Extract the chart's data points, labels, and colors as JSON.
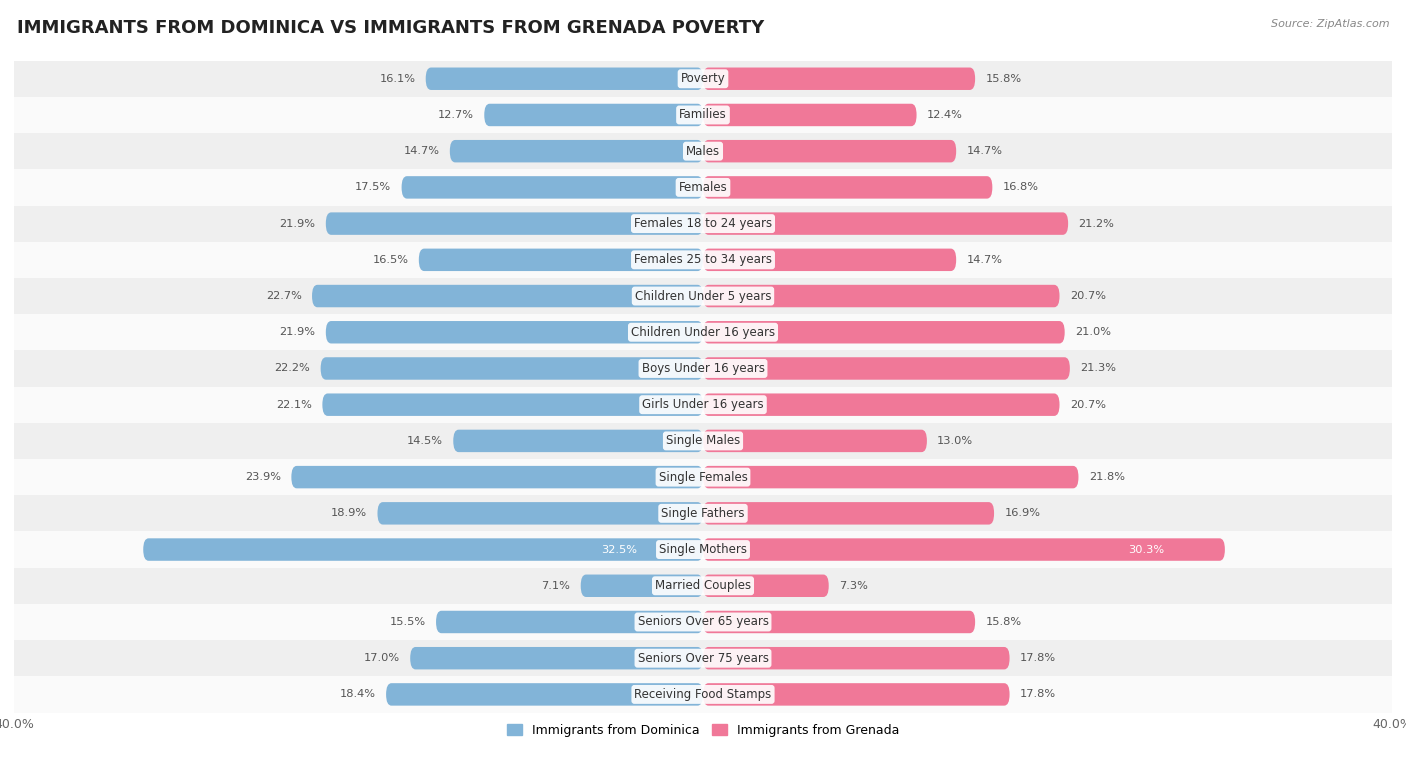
{
  "title": "IMMIGRANTS FROM DOMINICA VS IMMIGRANTS FROM GRENADA POVERTY",
  "source": "Source: ZipAtlas.com",
  "categories": [
    "Poverty",
    "Families",
    "Males",
    "Females",
    "Females 18 to 24 years",
    "Females 25 to 34 years",
    "Children Under 5 years",
    "Children Under 16 years",
    "Boys Under 16 years",
    "Girls Under 16 years",
    "Single Males",
    "Single Females",
    "Single Fathers",
    "Single Mothers",
    "Married Couples",
    "Seniors Over 65 years",
    "Seniors Over 75 years",
    "Receiving Food Stamps"
  ],
  "dominica_values": [
    16.1,
    12.7,
    14.7,
    17.5,
    21.9,
    16.5,
    22.7,
    21.9,
    22.2,
    22.1,
    14.5,
    23.9,
    18.9,
    32.5,
    7.1,
    15.5,
    17.0,
    18.4
  ],
  "grenada_values": [
    15.8,
    12.4,
    14.7,
    16.8,
    21.2,
    14.7,
    20.7,
    21.0,
    21.3,
    20.7,
    13.0,
    21.8,
    16.9,
    30.3,
    7.3,
    15.8,
    17.8,
    17.8
  ],
  "dominica_color": "#82b4d8",
  "grenada_color": "#f07898",
  "dominica_label": "Immigrants from Dominica",
  "grenada_label": "Immigrants from Grenada",
  "xlim": 40.0,
  "bar_height": 0.62,
  "row_bg_even": "#efefef",
  "row_bg_odd": "#fafafa",
  "title_fontsize": 13,
  "label_fontsize": 8.5,
  "value_fontsize": 8.2,
  "inside_threshold": 30.0
}
